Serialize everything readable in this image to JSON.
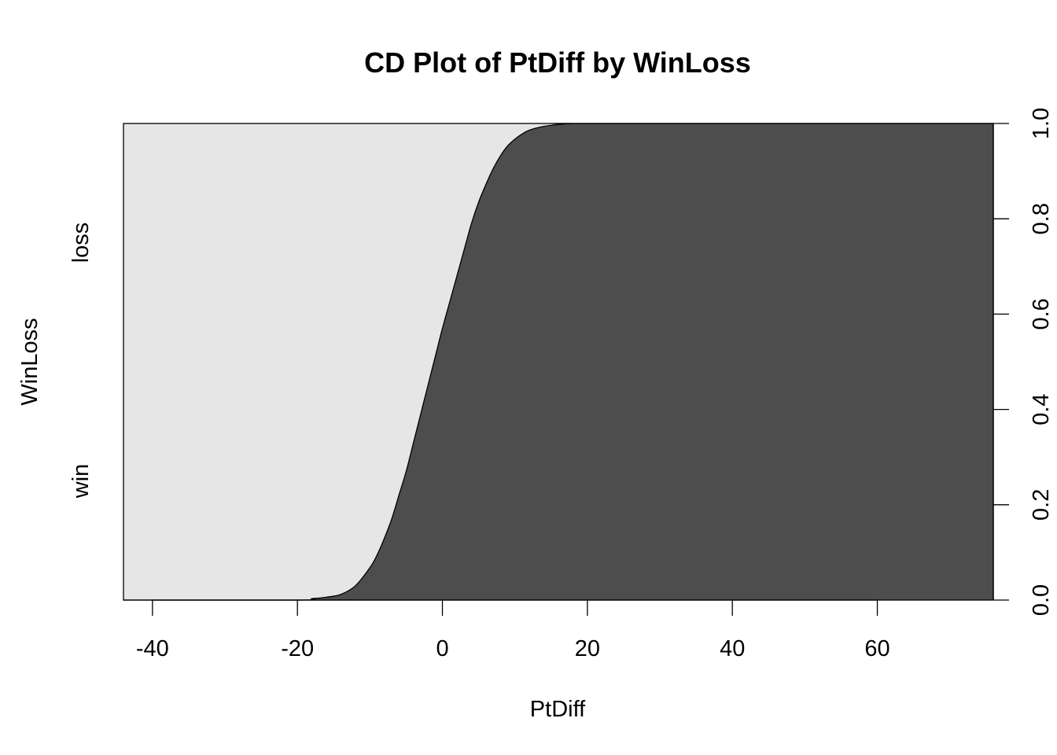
{
  "chart_data": {
    "type": "area",
    "title": "CD Plot of PtDiff by WinLoss",
    "xlabel": "PtDiff",
    "ylabel": "WinLoss",
    "xlim": [
      -44,
      76
    ],
    "ylim": [
      0,
      1
    ],
    "x_ticks": [
      -40,
      -20,
      0,
      20,
      40,
      60
    ],
    "x_tick_labels": [
      "-40",
      "-20",
      "0",
      "20",
      "40",
      "60"
    ],
    "y_ticks_right": [
      0,
      0.2,
      0.4,
      0.6,
      0.8,
      1
    ],
    "y_tick_labels_right": [
      "0.0",
      "0.2",
      "0.4",
      "0.6",
      "0.8",
      "1.0"
    ],
    "categories": [
      "win",
      "loss"
    ],
    "category_label_positions": [
      0.25,
      0.75
    ],
    "colors": {
      "win": "#e6e6e6",
      "loss": "#4d4d4d"
    },
    "boundary": {
      "x": [
        -44,
        -20,
        -18,
        -16,
        -14,
        -12,
        -10,
        -9,
        -8,
        -7,
        -6,
        -5,
        -4,
        -3,
        -2,
        -1,
        0,
        1,
        2,
        3,
        4,
        5,
        6,
        7,
        8,
        9,
        10,
        11,
        12,
        14,
        16,
        18,
        20,
        76
      ],
      "y": [
        0,
        0,
        0.003,
        0.006,
        0.012,
        0.03,
        0.068,
        0.095,
        0.13,
        0.17,
        0.22,
        0.27,
        0.33,
        0.39,
        0.45,
        0.51,
        0.57,
        0.625,
        0.68,
        0.735,
        0.79,
        0.835,
        0.872,
        0.905,
        0.932,
        0.953,
        0.967,
        0.978,
        0.986,
        0.994,
        0.998,
        1.0,
        1.0,
        1.0
      ]
    }
  }
}
